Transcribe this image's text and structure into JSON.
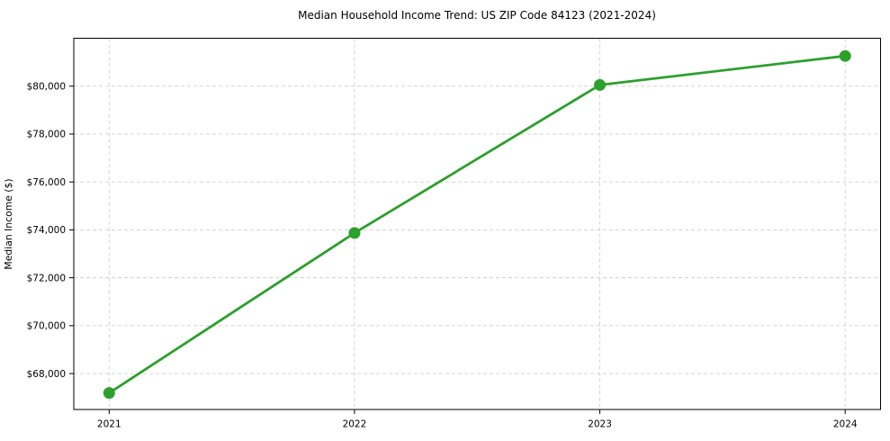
{
  "chart_data": {
    "type": "line",
    "title": "Median Household Income Trend: US ZIP Code 84123 (2021-2024)",
    "ylabel": "Median Income ($)",
    "xlabel": "",
    "categories": [
      "2021",
      "2022",
      "2023",
      "2024"
    ],
    "series": [
      {
        "values": [
          67190,
          73870,
          80050,
          81260
        ],
        "color": "#2ca02c",
        "line_width": 2.8,
        "marker": "circle",
        "marker_radius": 6.5
      }
    ],
    "ylim": [
      66500,
      82000
    ],
    "yticks": [
      {
        "value": 68000,
        "label": "$68,000"
      },
      {
        "value": 70000,
        "label": "$70,000"
      },
      {
        "value": 72000,
        "label": "$72,000"
      },
      {
        "value": 74000,
        "label": "$74,000"
      },
      {
        "value": 76000,
        "label": "$76,000"
      },
      {
        "value": 78000,
        "label": "$78,000"
      },
      {
        "value": 80000,
        "label": "$80,000"
      }
    ],
    "grid": "both",
    "grid_style": "dashed",
    "grid_color": "#cfcfcf",
    "axis_color": "#000000",
    "background": "#ffffff",
    "legend_position": "none"
  }
}
